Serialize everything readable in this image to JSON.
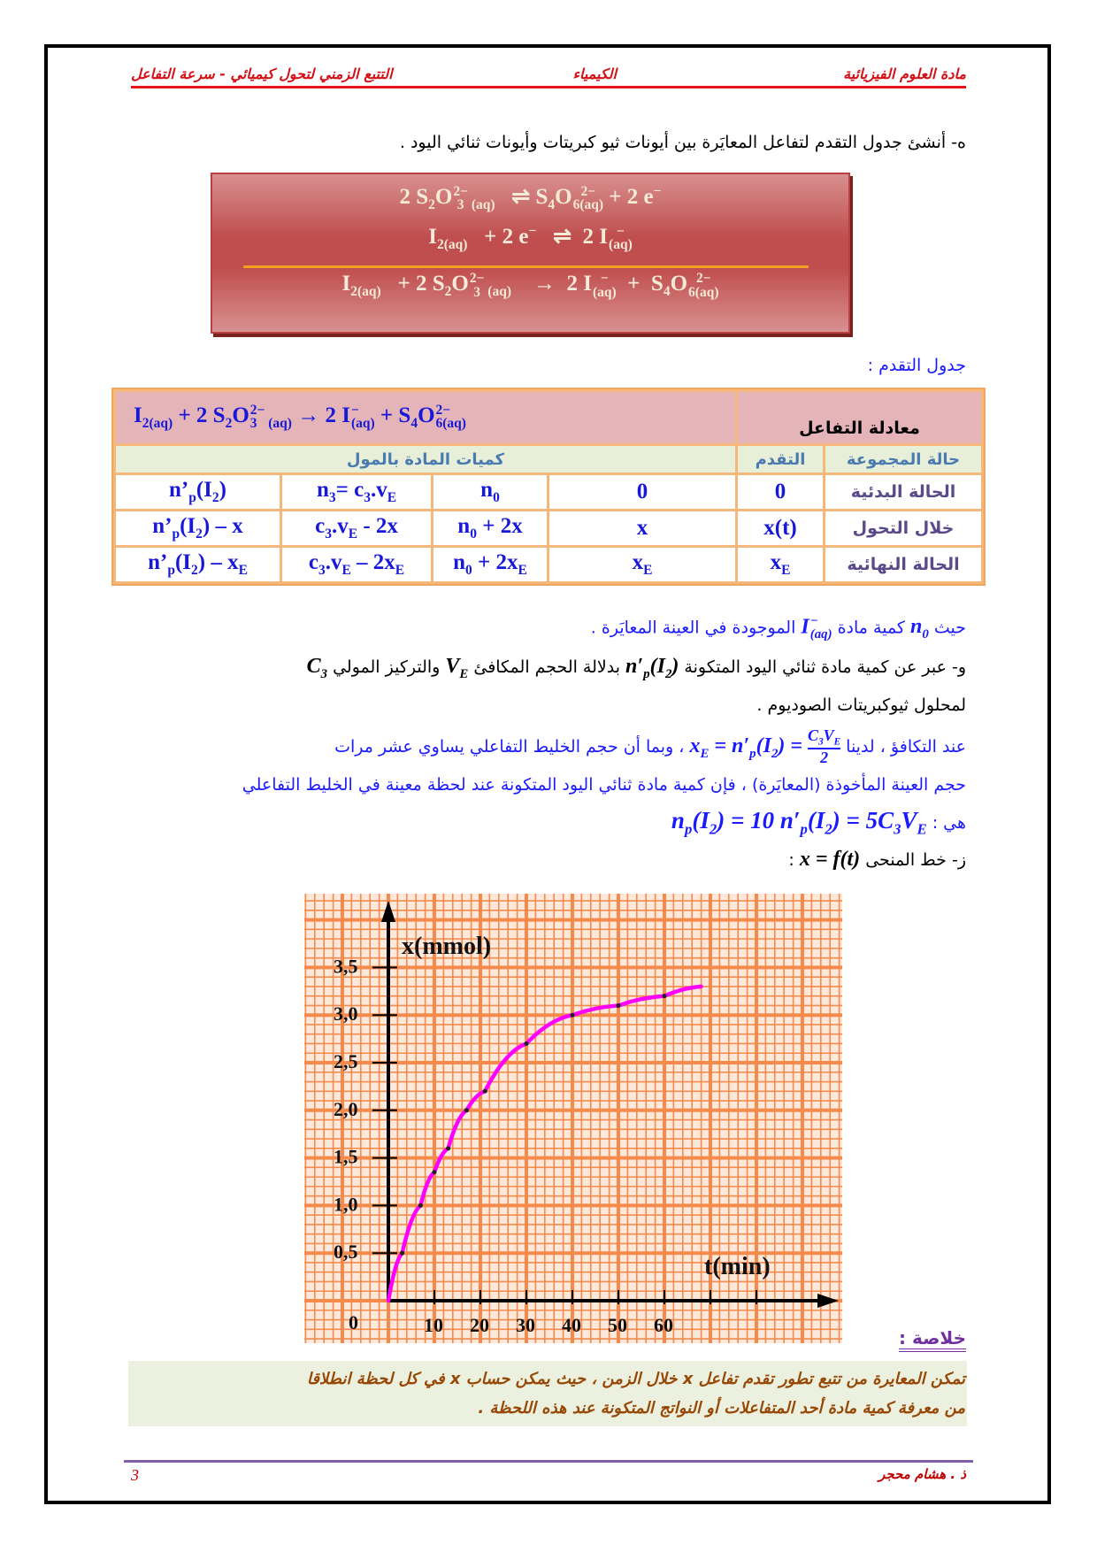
{
  "header": {
    "right": "مادة العلوم الفيزيائية",
    "center": "الكيمياء",
    "left": "التتبع الزمني لتحول كيميائي - سرعة التفاعل"
  },
  "question_e": "ه- أنشئ جدول التقدم لتفاعل المعايَرة بين أيونات ثيو كبريتات وأيونات ثنائي اليود .",
  "equations": [
    [
      "2 S",
      {
        "sub": "2"
      },
      "O",
      {
        "subsup": [
          "3",
          "2−"
        ]
      },
      {
        "sub": " (aq)"
      },
      "   ⇌ S",
      {
        "sub": "4"
      },
      "O",
      {
        "subsup": [
          "6(aq)",
          "2−"
        ]
      },
      " + 2 e",
      {
        "sup": "−"
      }
    ],
    [
      "I",
      {
        "sub": "2(aq)"
      },
      "   + 2 e",
      {
        "sup": "−"
      },
      "   ⇌  2 I",
      {
        "subsup": [
          "(aq)",
          "−"
        ]
      }
    ],
    [
      "I",
      {
        "sub": "2(aq)"
      },
      "   + 2 S",
      {
        "sub": "2"
      },
      "O",
      {
        "subsup": [
          "3",
          "2−"
        ]
      },
      {
        "sub": " (aq)"
      },
      "    →  2 I",
      {
        "subsup": [
          "(aq)",
          "−"
        ]
      },
      "  +  S",
      {
        "sub": "4"
      },
      "O",
      {
        "subsup": [
          "6(aq)",
          "2−"
        ]
      }
    ]
  ],
  "table_title": "جدول التقدم :",
  "table": {
    "eq_label": "معادلة التفاعل",
    "equation": [
      "I",
      {
        "sub": "2(aq)"
      },
      "     +    2 S",
      {
        "sub": "2"
      },
      "O",
      {
        "subsup": [
          "3",
          "2−"
        ]
      },
      {
        "sub": " (aq)"
      },
      "    →  2 I",
      {
        "subsup": [
          "(aq)",
          "−"
        ]
      },
      "  +  S",
      {
        "sub": "4"
      },
      "O",
      {
        "subsup": [
          "6(aq)",
          "2−"
        ]
      }
    ],
    "state_label": "حالة المجموعة",
    "adv_label": "التقدم",
    "qty_label": "كميات المادة بالمول",
    "rows": [
      {
        "state": "الحالة البدئية",
        "adv": [
          "0"
        ],
        "c": [
          [
            "0"
          ],
          [
            "n",
            {
              "sub": "0"
            }
          ],
          [
            "n",
            {
              "sub": "3"
            },
            "= c",
            {
              "sub": "3"
            },
            ".v",
            {
              "sub": "E"
            }
          ],
          [
            "n’",
            {
              "sub": "p"
            },
            "(I",
            {
              "sub": "2"
            },
            ")"
          ]
        ]
      },
      {
        "state": "خلال التحول",
        "adv": [
          "x(t)"
        ],
        "c": [
          [
            "x"
          ],
          [
            "n",
            {
              "sub": "0"
            },
            " + 2x"
          ],
          [
            "c",
            {
              "sub": "3"
            },
            ".v",
            {
              "sub": "E"
            },
            " - 2x"
          ],
          [
            "n’",
            {
              "sub": "p"
            },
            "(I",
            {
              "sub": "2"
            },
            ") – x"
          ]
        ]
      },
      {
        "state": "الحالة النهائية",
        "adv": [
          "x",
          {
            "sub": "E"
          }
        ],
        "c": [
          [
            "x",
            {
              "sub": "E"
            }
          ],
          [
            "n",
            {
              "sub": "0"
            },
            " + 2x",
            {
              "sub": "E"
            }
          ],
          [
            "c",
            {
              "sub": "3"
            },
            ".v",
            {
              "sub": "E"
            },
            " – 2x",
            {
              "sub": "E"
            }
          ],
          [
            "n’",
            {
              "sub": "p"
            },
            "(I",
            {
              "sub": "2"
            },
            ") – x",
            {
              "sub": "E"
            }
          ]
        ]
      }
    ]
  },
  "lines": {
    "l1a": "حيث ",
    "l1m1": [
      "n",
      {
        "sub": "0"
      }
    ],
    "l1b": " كمية مادة ",
    "l1m2": [
      "I",
      {
        "subsup": [
          "(aq)",
          "−"
        ]
      }
    ],
    "l1c": " الموجودة في العينة المعايَرة .",
    "l2a": "و- عبر عن كمية مادة ثنائي اليود المتكونة ",
    "l2m1": [
      "n′",
      {
        "sub": "p"
      },
      "(I",
      {
        "sub": "2"
      },
      ")"
    ],
    "l2b": " بدلالة الحجم المكافئ ",
    "l2m2": [
      "V",
      {
        "sub": "E"
      }
    ],
    "l2c": " والتركيز المولي ",
    "l2m3": [
      "C",
      {
        "sub": "3"
      }
    ],
    "l3": "لمحلول ثيوكبريتات الصوديوم .",
    "l4a": "عند التكافؤ ، لدينا ",
    "l4m": [
      "x",
      {
        "sub": "E"
      },
      " = n′",
      {
        "sub": "p"
      },
      "(I",
      {
        "sub": "2"
      },
      ") = "
    ],
    "l4num": "C₃V_E",
    "l4num_parts": [
      "C",
      {
        "sub": "3"
      },
      "V",
      {
        "sub": "E"
      }
    ],
    "l4den": "2",
    "l4b": " ، وبما أن حجم الخليط التفاعلي يساوي عشر مرات",
    "l5": "حجم العينة المأخوذة (المعايَرة) ، فإن كمية مادة ثنائي اليود المتكونة عند لحظة معينة في الخليط التفاعلي",
    "l6a": "هي : ",
    "l6m": [
      "n",
      {
        "sub": "p"
      },
      "(I",
      {
        "sub": "2"
      },
      ") =  10 n′",
      {
        "sub": "p"
      },
      "(I",
      {
        "sub": "2"
      },
      ") = 5C",
      {
        "sub": "3"
      },
      "V",
      {
        "sub": "E"
      }
    ],
    "l7a": "ز- خط المنحى ",
    "l7m": [
      "x = f(t)"
    ],
    "l7b": " :"
  },
  "chart_data": {
    "type": "line",
    "xlabel": "t(min)",
    "ylabel": "x(mmol)",
    "xlim": [
      0,
      85
    ],
    "ylim": [
      0,
      4.2
    ],
    "x_ticks": [
      "0",
      "10",
      "20",
      "30",
      "40",
      "50",
      "60"
    ],
    "y_ticks": [
      "0,5",
      "1,0",
      "1,5",
      "2,0",
      "2,5",
      "3,0",
      "3,5"
    ],
    "grid": true,
    "background_grid": "millimetre paper",
    "grid_color": "#f58a4b",
    "curve_color": "#ff00ff",
    "x": [
      0,
      3,
      7,
      10,
      13,
      17,
      21,
      30,
      40,
      50,
      60,
      68
    ],
    "y": [
      0,
      0.5,
      1.0,
      1.35,
      1.6,
      2.0,
      2.2,
      2.7,
      3.0,
      3.1,
      3.2,
      3.3
    ]
  },
  "conclusion": {
    "title": "خلاصة :",
    "text1": "تمكن المعايرة من تتبع تطور تقدم تفاعل x خلال الزمن ، حيث يمكن حساب  x  في كل لحظة انطلاقا",
    "text2": "من معرفة كمية مادة أحد المتفاعلات أو النواتج المتكونة عند هذه اللحظة ."
  },
  "footer": {
    "page": "3",
    "author": "ذ . هشام محجر"
  }
}
